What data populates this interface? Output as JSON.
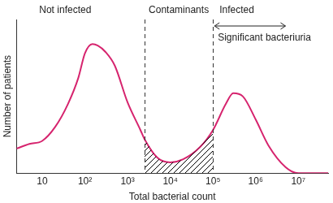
{
  "chart_data": {
    "type": "line",
    "x": [
      2.5,
      5,
      10,
      20,
      40,
      70,
      100,
      150,
      200,
      300,
      500,
      1000,
      2000,
      2500,
      5000,
      10000,
      20000,
      50000,
      100000,
      200000,
      300000,
      500000,
      1000000,
      2000000,
      5000000,
      10000000,
      50000000
    ],
    "values": [
      16,
      19,
      21,
      30,
      45,
      62,
      78,
      84,
      83,
      79,
      70,
      46,
      28,
      22,
      10,
      7,
      9,
      17,
      28,
      45,
      52,
      50,
      35,
      18,
      4,
      0,
      0
    ],
    "color": "#d6246e",
    "xlabel": "Total bacterial count",
    "ylabel": "Number of patients",
    "xlim": [
      2.5,
      50000000
    ],
    "ylim": [
      0,
      100
    ],
    "xticks": [
      10,
      {
        "value": 100,
        "label": "10²"
      },
      {
        "value": 1000,
        "label": "10³"
      },
      {
        "value": 10000,
        "label": "10⁴"
      },
      {
        "value": 100000,
        "label": "10⁵"
      },
      {
        "value": 1000000,
        "label": "10⁶"
      },
      {
        "value": 10000000,
        "label": "10⁷"
      }
    ],
    "log": "x",
    "grid": false,
    "legend": "none",
    "tick_labels": "x",
    "annotations": {
      "regions": [
        "Not infected",
        "Contaminants",
        "Infected"
      ],
      "dividers": [
        2500,
        100000
      ],
      "shaded": [
        2500,
        100000
      ],
      "arrow": {
        "text": "Significant bacteriuria",
        "from": 100000,
        "to": 5000000
      }
    }
  }
}
